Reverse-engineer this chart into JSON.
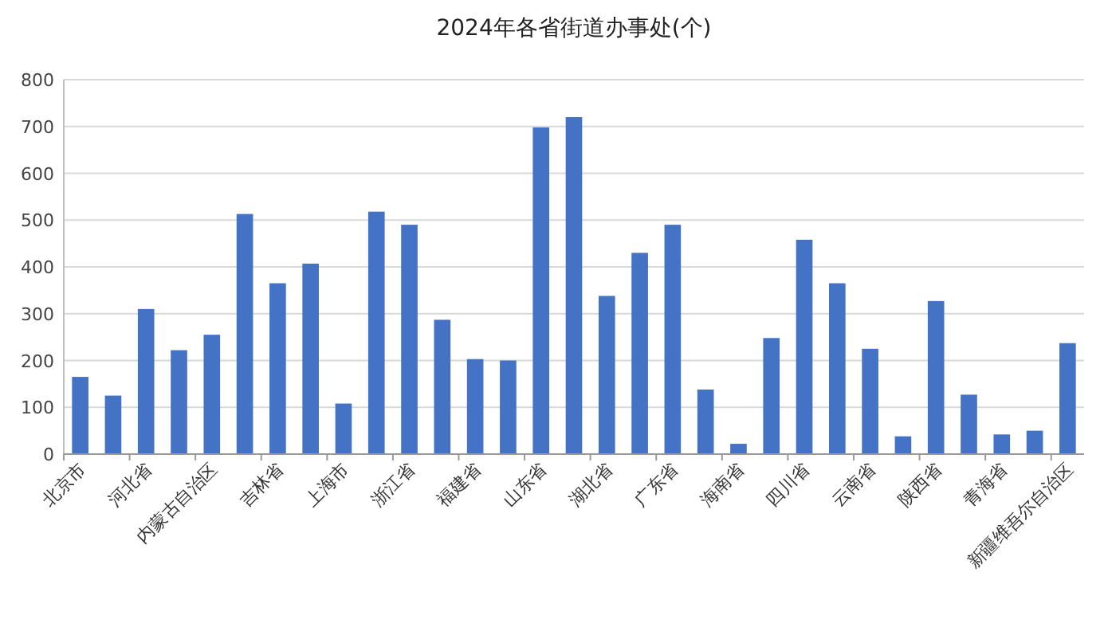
{
  "chart_data": {
    "type": "bar",
    "title": "2024年各省街道办事处(个)",
    "categories": [
      "北京市",
      null,
      "河北省",
      null,
      "内蒙古自治区",
      null,
      "吉林省",
      null,
      "上海市",
      null,
      "浙江省",
      null,
      "福建省",
      null,
      "山东省",
      null,
      "湖北省",
      null,
      "广东省",
      null,
      "海南省",
      null,
      "四川省",
      null,
      "云南省",
      null,
      "陕西省",
      null,
      "青海省",
      null,
      "新疆维吾尔自治区"
    ],
    "values": [
      165,
      125,
      310,
      222,
      255,
      513,
      365,
      407,
      108,
      518,
      490,
      287,
      203,
      200,
      698,
      720,
      338,
      430,
      490,
      138,
      22,
      248,
      458,
      365,
      225,
      38,
      327,
      127,
      42,
      50,
      237
    ],
    "color": "#4472c4",
    "ylim": [
      0,
      800
    ],
    "yticks": [
      0,
      100,
      200,
      300,
      400,
      500,
      600,
      700,
      800
    ],
    "grid": "y"
  }
}
